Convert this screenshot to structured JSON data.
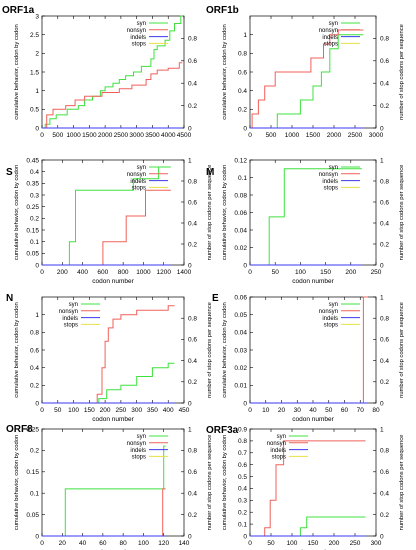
{
  "colors": {
    "syn": "#3fe03f",
    "nonsyn": "#f0605a",
    "indels": "#3a3af0",
    "stops": "#e8e040",
    "axis": "#000000"
  },
  "chart_data": [
    {
      "title": "ORF1a",
      "type": "line",
      "xlabel": "",
      "ylabel": "cumulative behavior, codon by codon",
      "y2label": "",
      "xlim": [
        0,
        4500
      ],
      "ylim": [
        0,
        3
      ],
      "y2lim": [
        0,
        1
      ],
      "xticks": [
        "0",
        "500",
        "1000",
        "1500",
        "2000",
        "2500",
        "3000",
        "3500",
        "4000",
        "4500"
      ],
      "yticks": [
        "0",
        "0.5",
        "1",
        "1.5",
        "2",
        "2.5",
        "3"
      ],
      "y2ticks": [
        "0",
        "0.2",
        "0.4",
        "0.6",
        "0.8"
      ],
      "legend": [
        "syn",
        "nonsyn",
        "indels",
        "stops"
      ],
      "legend_position": "top-right",
      "series": [
        {
          "name": "syn",
          "color_key": "syn",
          "x": [
            0,
            100,
            100,
            250,
            250,
            450,
            450,
            800,
            800,
            1150,
            1150,
            1350,
            1350,
            1600,
            1600,
            1850,
            1850,
            2000,
            2000,
            2250,
            2250,
            2450,
            2450,
            2650,
            2650,
            2900,
            2900,
            3150,
            3150,
            3450,
            3450,
            3550,
            3550,
            3650,
            3650,
            3900,
            3900,
            4050,
            4050,
            4200,
            4200,
            4400,
            4400,
            4450
          ],
          "y": [
            0,
            0,
            0.1,
            0.1,
            0.25,
            0.25,
            0.35,
            0.35,
            0.5,
            0.5,
            0.6,
            0.6,
            0.75,
            0.75,
            0.85,
            0.85,
            1.0,
            1.0,
            1.1,
            1.1,
            1.2,
            1.2,
            1.3,
            1.3,
            1.4,
            1.4,
            1.5,
            1.5,
            1.65,
            1.65,
            1.85,
            1.85,
            2.1,
            2.1,
            2.2,
            2.2,
            2.35,
            2.35,
            2.6,
            2.6,
            2.8,
            2.8,
            3.0,
            3.0
          ]
        },
        {
          "name": "nonsyn",
          "color_key": "nonsyn",
          "x": [
            0,
            150,
            150,
            350,
            350,
            750,
            750,
            1050,
            1050,
            1350,
            1350,
            1900,
            1900,
            2450,
            2450,
            2850,
            2850,
            3300,
            3300,
            3450,
            3450,
            3650,
            3650,
            4000,
            4000,
            4350,
            4350,
            4450
          ],
          "y": [
            0,
            0,
            0.35,
            0.35,
            0.5,
            0.5,
            0.6,
            0.6,
            0.75,
            0.75,
            0.85,
            0.85,
            0.95,
            0.95,
            1.05,
            1.05,
            1.15,
            1.15,
            1.3,
            1.3,
            1.45,
            1.45,
            1.55,
            1.55,
            1.6,
            1.6,
            1.75,
            1.75
          ]
        },
        {
          "name": "indels",
          "color_key": "indels",
          "x": [
            0,
            4450
          ],
          "y": [
            0,
            0
          ]
        },
        {
          "name": "stops",
          "color_key": "stops",
          "x": [],
          "y": []
        }
      ]
    },
    {
      "title": "ORF1b",
      "type": "line",
      "xlabel": "",
      "ylabel": "cumulative behavior, codon by codon",
      "y2label": "number of stop codons per sequence",
      "xlim": [
        0,
        3000
      ],
      "ylim": [
        0,
        1.2
      ],
      "y2lim": [
        0,
        1
      ],
      "xticks": [
        "0",
        "500",
        "1000",
        "1500",
        "2000",
        "2500",
        "3000"
      ],
      "yticks": [
        "0",
        "0.2",
        "0.4",
        "0.6",
        "0.8",
        "1"
      ],
      "y2ticks": [
        "0",
        "0.2",
        "0.4",
        "0.6",
        "0.8"
      ],
      "legend": [
        "syn",
        "nonsyn",
        "indels",
        "stops"
      ],
      "legend_position": "top-right",
      "series": [
        {
          "name": "syn",
          "color_key": "syn",
          "x": [
            0,
            650,
            650,
            1200,
            1200,
            1500,
            1500,
            1700,
            1700,
            1900,
            1900,
            2100,
            2100,
            2700
          ],
          "y": [
            0,
            0,
            0.15,
            0.15,
            0.3,
            0.3,
            0.45,
            0.45,
            0.6,
            0.6,
            0.85,
            0.85,
            1.0,
            1.0
          ]
        },
        {
          "name": "nonsyn",
          "color_key": "nonsyn",
          "x": [
            0,
            50,
            50,
            200,
            200,
            350,
            350,
            600,
            600,
            1450,
            1450,
            1750,
            1750,
            1900,
            1900,
            2100,
            2100,
            2700
          ],
          "y": [
            0,
            0,
            0.15,
            0.15,
            0.3,
            0.3,
            0.45,
            0.45,
            0.6,
            0.6,
            0.75,
            0.75,
            0.9,
            0.9,
            1.0,
            1.0,
            1.05,
            1.05
          ]
        },
        {
          "name": "indels",
          "color_key": "indels",
          "x": [
            0,
            2700
          ],
          "y": [
            0,
            0
          ]
        },
        {
          "name": "stops",
          "color_key": "stops",
          "x": [],
          "y": []
        }
      ]
    },
    {
      "title": "S",
      "type": "line",
      "xlabel": "codon number",
      "ylabel": "cumulative behavior, codon by codon",
      "y2label": "number of stop codons per sequence",
      "xlim": [
        0,
        1400
      ],
      "ylim": [
        0,
        0.45
      ],
      "y2lim": [
        0,
        1
      ],
      "xticks": [
        "0",
        "200",
        "400",
        "600",
        "800",
        "1000",
        "1200",
        "1400"
      ],
      "yticks": [
        "0",
        "0.05",
        "0.1",
        "0.15",
        "0.2",
        "0.25",
        "0.3",
        "0.35",
        "0.4",
        "0.45"
      ],
      "y2ticks": [
        "0",
        "0.2",
        "0.4",
        "0.6",
        "0.8",
        "1"
      ],
      "legend": [
        "syn",
        "nonsyn",
        "indels",
        "stops"
      ],
      "legend_position": "top-right",
      "series": [
        {
          "name": "syn",
          "color_key": "syn",
          "x": [
            0,
            270,
            270,
            330,
            330,
            900,
            900,
            1150,
            1150,
            1270
          ],
          "y": [
            0,
            0,
            0.1,
            0.1,
            0.32,
            0.32,
            0.37,
            0.37,
            0.42,
            0.42
          ]
        },
        {
          "name": "nonsyn",
          "color_key": "nonsyn",
          "x": [
            0,
            600,
            600,
            830,
            830,
            1020,
            1020,
            1270
          ],
          "y": [
            0,
            0,
            0.1,
            0.1,
            0.21,
            0.21,
            0.32,
            0.32
          ]
        },
        {
          "name": "indels",
          "color_key": "indels",
          "x": [
            0,
            1270
          ],
          "y": [
            0,
            0
          ]
        },
        {
          "name": "stops",
          "color_key": "stops",
          "x": [],
          "y": []
        }
      ]
    },
    {
      "title": "M",
      "type": "line",
      "xlabel": "codon number",
      "ylabel": "cumulative behavior, codon by codon",
      "y2label": "number of stop codons per sequence",
      "xlim": [
        0,
        250
      ],
      "ylim": [
        0,
        0.12
      ],
      "y2lim": [
        0,
        1
      ],
      "xticks": [
        "0",
        "50",
        "100",
        "150",
        "200",
        "250"
      ],
      "yticks": [
        "0",
        "0.02",
        "0.04",
        "0.06",
        "0.08",
        "0.1",
        "0.12"
      ],
      "y2ticks": [
        "0",
        "0.2",
        "0.4",
        "0.6",
        "0.8",
        "1"
      ],
      "legend": [
        "syn",
        "nonsyn",
        "indels",
        "stops"
      ],
      "legend_position": "top-right",
      "series": [
        {
          "name": "syn",
          "color_key": "syn",
          "x": [
            0,
            38,
            38,
            68,
            68,
            222
          ],
          "y": [
            0,
            0,
            0.055,
            0.055,
            0.11,
            0.11
          ]
        },
        {
          "name": "nonsyn",
          "color_key": "nonsyn",
          "x": [
            0,
            222
          ],
          "y": [
            0,
            0
          ]
        },
        {
          "name": "indels",
          "color_key": "indels",
          "x": [
            0,
            222
          ],
          "y": [
            0,
            0
          ]
        },
        {
          "name": "stops",
          "color_key": "stops",
          "x": [],
          "y": []
        }
      ]
    },
    {
      "title": "N",
      "type": "line",
      "xlabel": "codon number",
      "ylabel": "cumulative behavior, codon by codon",
      "y2label": "number of stop codons per sequence",
      "xlim": [
        0,
        450
      ],
      "ylim": [
        0,
        1.2
      ],
      "y2lim": [
        0,
        1
      ],
      "xticks": [
        "0",
        "50",
        "100",
        "150",
        "200",
        "250",
        "300",
        "350",
        "400",
        "450"
      ],
      "yticks": [
        "0",
        "0.2",
        "0.4",
        "0.6",
        "0.8",
        "1"
      ],
      "y2ticks": [
        "0",
        "0.2",
        "0.4",
        "0.6",
        "0.8"
      ],
      "legend": [
        "syn",
        "nonsyn",
        "indels",
        "stops"
      ],
      "legend_position": "top-left",
      "series": [
        {
          "name": "syn",
          "color_key": "syn",
          "x": [
            0,
            180,
            180,
            205,
            205,
            250,
            250,
            300,
            300,
            350,
            350,
            400,
            400,
            420
          ],
          "y": [
            0,
            0,
            0.05,
            0.05,
            0.15,
            0.15,
            0.2,
            0.2,
            0.3,
            0.3,
            0.4,
            0.4,
            0.45,
            0.45
          ]
        },
        {
          "name": "nonsyn",
          "color_key": "nonsyn",
          "x": [
            0,
            175,
            175,
            190,
            190,
            200,
            200,
            210,
            210,
            225,
            225,
            250,
            250,
            300,
            300,
            400,
            400,
            420
          ],
          "y": [
            0,
            0,
            0.1,
            0.1,
            0.4,
            0.4,
            0.7,
            0.7,
            0.85,
            0.85,
            0.95,
            0.95,
            1.0,
            1.0,
            1.05,
            1.05,
            1.1,
            1.1
          ]
        },
        {
          "name": "indels",
          "color_key": "indels",
          "x": [
            0,
            420
          ],
          "y": [
            0,
            0
          ]
        },
        {
          "name": "stops",
          "color_key": "stops",
          "x": [],
          "y": []
        }
      ]
    },
    {
      "title": "E",
      "type": "line",
      "xlabel": "codon number",
      "ylabel": "cumulative behavior, codon by codon",
      "y2label": "number of stop codons per sequence",
      "xlim": [
        0,
        80
      ],
      "ylim": [
        0,
        0.06
      ],
      "y2lim": [
        0,
        1
      ],
      "xticks": [
        "0",
        "10",
        "20",
        "30",
        "40",
        "50",
        "60",
        "70",
        "80"
      ],
      "yticks": [
        "0",
        "0.01",
        "0.02",
        "0.03",
        "0.04",
        "0.05",
        "0.06"
      ],
      "y2ticks": [
        "0",
        "0.2",
        "0.4",
        "0.6",
        "0.8",
        "1"
      ],
      "legend": [
        "syn",
        "nonsyn",
        "indels",
        "stops"
      ],
      "legend_position": "top-right",
      "series": [
        {
          "name": "syn",
          "color_key": "syn",
          "x": [
            0,
            75
          ],
          "y": [
            0,
            0
          ]
        },
        {
          "name": "nonsyn",
          "color_key": "nonsyn",
          "x": [
            0,
            72,
            72,
            75
          ],
          "y": [
            0,
            0,
            0.06,
            0.06
          ]
        },
        {
          "name": "indels",
          "color_key": "indels",
          "x": [
            0,
            75
          ],
          "y": [
            0,
            0
          ]
        },
        {
          "name": "stops",
          "color_key": "stops",
          "x": [],
          "y": []
        }
      ]
    },
    {
      "title": "ORF8",
      "type": "line",
      "xlabel": "codon number",
      "ylabel": "cumulative behavior, codon by codon",
      "y2label": "number of stop codons per sequence",
      "xlim": [
        0,
        140
      ],
      "ylim": [
        0,
        0.25
      ],
      "y2lim": [
        0,
        1
      ],
      "xticks": [
        "0",
        "20",
        "40",
        "60",
        "80",
        "100",
        "120",
        "140"
      ],
      "yticks": [
        "0",
        "0.05",
        "0.1",
        "0.15",
        "0.2",
        "0.25"
      ],
      "y2ticks": [
        "0",
        "0.2",
        "0.4",
        "0.6",
        "0.8",
        "1"
      ],
      "legend": [
        "syn",
        "nonsyn",
        "indels",
        "stops"
      ],
      "legend_position": "top-right",
      "series": [
        {
          "name": "syn",
          "color_key": "syn",
          "x": [
            0,
            23,
            23,
            120,
            120,
            122
          ],
          "y": [
            0,
            0,
            0.11,
            0.11,
            0.21,
            0.21
          ]
        },
        {
          "name": "nonsyn",
          "color_key": "nonsyn",
          "x": [
            0,
            119,
            119,
            122
          ],
          "y": [
            0,
            0,
            0.11,
            0.11
          ]
        },
        {
          "name": "indels",
          "color_key": "indels",
          "x": [
            0,
            122
          ],
          "y": [
            0,
            0
          ]
        },
        {
          "name": "stops",
          "color_key": "stops",
          "x": [],
          "y": []
        }
      ]
    },
    {
      "title": "ORF3a",
      "type": "line",
      "xlabel": "codon number",
      "ylabel": "cumulative behavior, codon by codon",
      "y2label": "number of stop codons per sequence",
      "xlim": [
        0,
        300
      ],
      "ylim": [
        0,
        0.9
      ],
      "y2lim": [
        0,
        1
      ],
      "xticks": [
        "0",
        "50",
        "100",
        "150",
        "200",
        "250",
        "300"
      ],
      "yticks": [
        "0",
        "0.1",
        "0.2",
        "0.3",
        "0.4",
        "0.5",
        "0.6",
        "0.7",
        "0.8",
        "0.9"
      ],
      "y2ticks": [
        "0",
        "0.2",
        "0.4",
        "0.6",
        "0.8",
        "1"
      ],
      "legend": [
        "syn",
        "nonsyn",
        "indels",
        "stops"
      ],
      "legend_position": "top-left",
      "series": [
        {
          "name": "syn",
          "color_key": "syn",
          "x": [
            0,
            120,
            120,
            135,
            135,
            275
          ],
          "y": [
            0,
            0,
            0.07,
            0.07,
            0.16,
            0.16
          ]
        },
        {
          "name": "nonsyn",
          "color_key": "nonsyn",
          "x": [
            0,
            35,
            35,
            48,
            48,
            62,
            62,
            80,
            80,
            275
          ],
          "y": [
            0,
            0,
            0.07,
            0.07,
            0.3,
            0.3,
            0.6,
            0.6,
            0.8,
            0.8
          ]
        },
        {
          "name": "indels",
          "color_key": "indels",
          "x": [
            0,
            275
          ],
          "y": [
            0,
            0
          ]
        },
        {
          "name": "stops",
          "color_key": "stops",
          "x": [],
          "y": []
        }
      ]
    }
  ]
}
